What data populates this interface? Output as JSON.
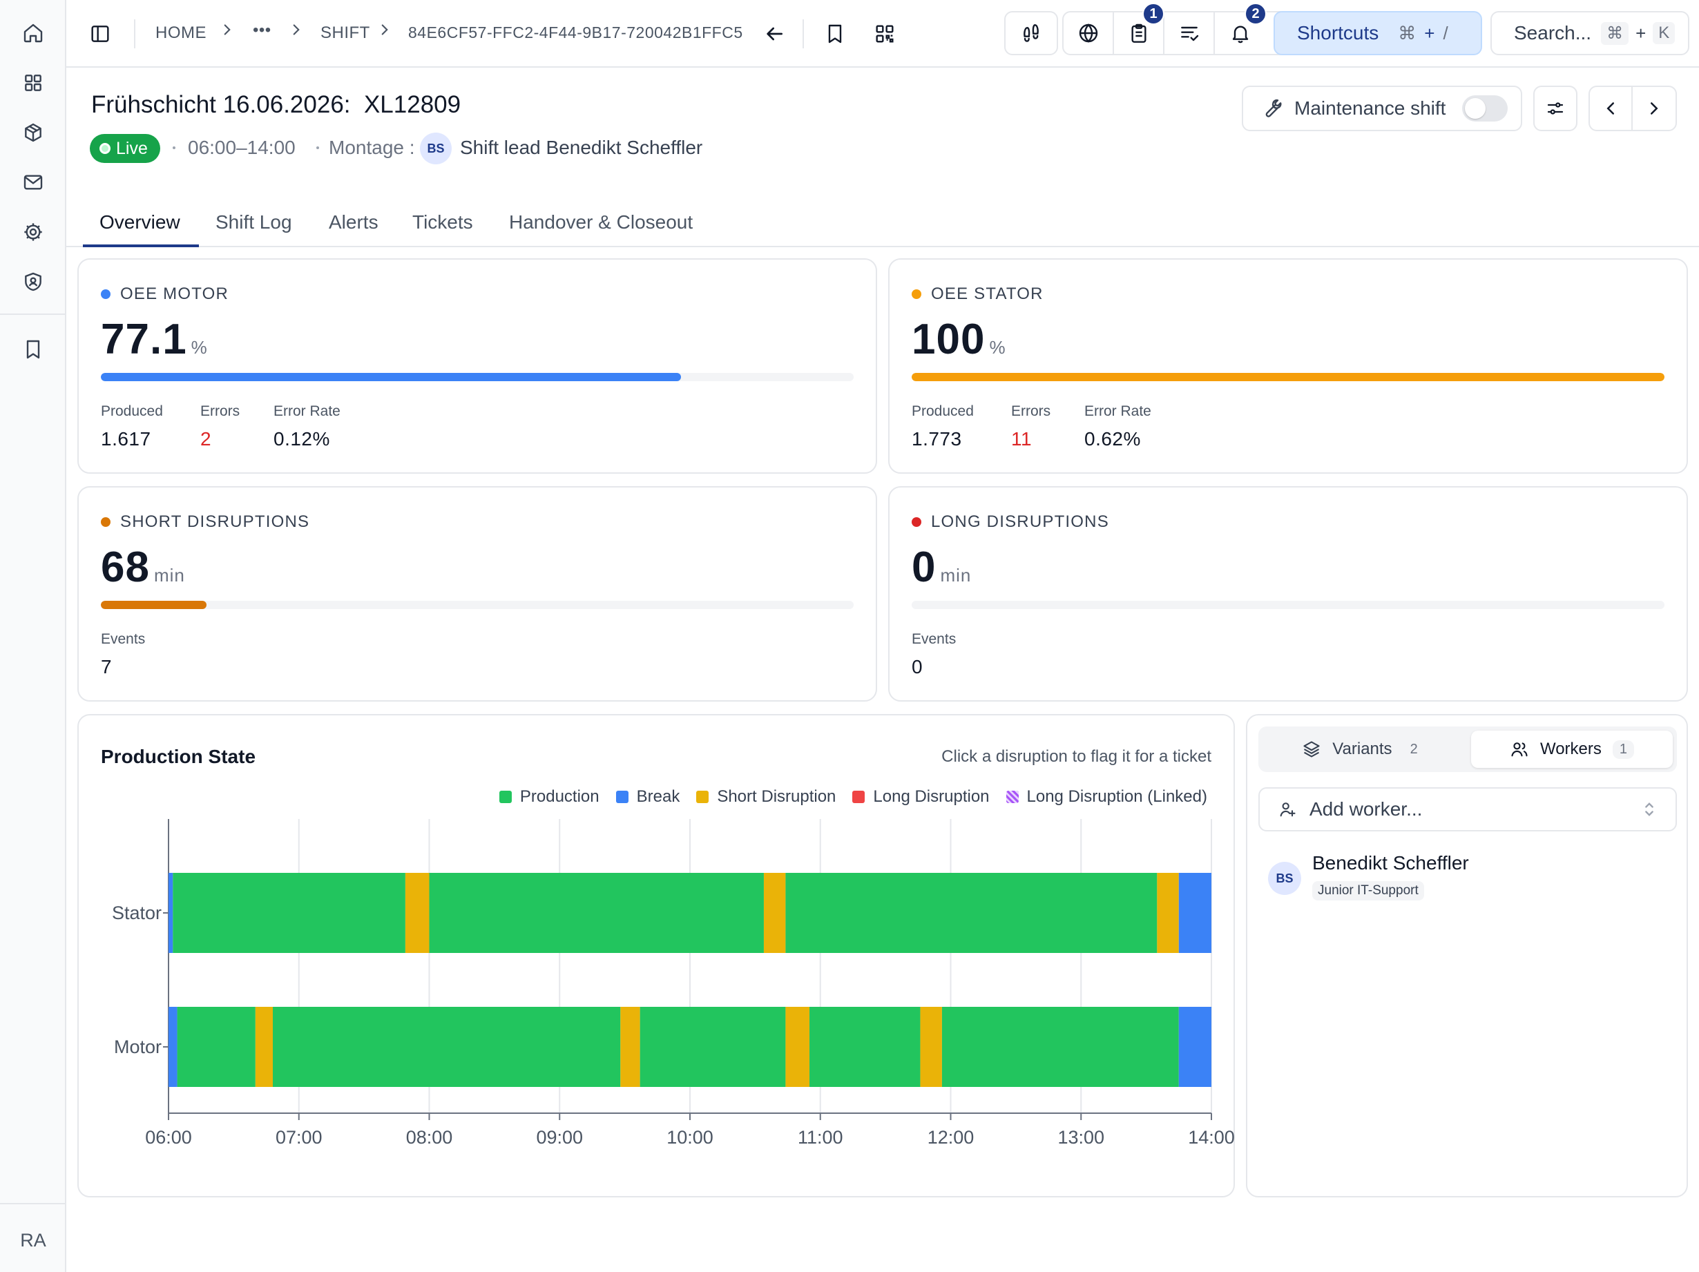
{
  "breadcrumb": {
    "home": "HOME",
    "ellipsis": "•••",
    "section": "SHIFT",
    "id": "84E6CF57-FFC2-4F44-9B17-720042B1FFC5"
  },
  "toolbar": {
    "checklist_badge": "1",
    "notifications_badge": "2",
    "shortcuts_label": "Shortcuts",
    "shortcuts_key1": "⌘",
    "shortcuts_plus": "+",
    "shortcuts_key2": "/",
    "search_label": "Search...",
    "search_key1": "⌘",
    "search_plus": "+",
    "search_key2": "K"
  },
  "header": {
    "title": "Frühschicht 16.06.2026:  XL12809",
    "status": "Live",
    "time_range": "06:00–14:00",
    "line": "Montage :",
    "lead_initials": "BS",
    "lead_text": "Shift lead Benedikt Scheffler",
    "maintenance_label": "Maintenance shift",
    "maintenance_on": false
  },
  "tabs": [
    "Overview",
    "Shift Log",
    "Alerts",
    "Tickets",
    "Handover & Closeout"
  ],
  "kpis": {
    "oee_motor": {
      "label": "OEE MOTOR",
      "value": "77.1",
      "unit": "%",
      "progress": 0.771,
      "color": "#3b82f6",
      "stats": [
        {
          "label": "Produced",
          "value": "1.617"
        },
        {
          "label": "Errors",
          "value": "2"
        },
        {
          "label": "Error Rate",
          "value": "0.12%"
        }
      ]
    },
    "oee_stator": {
      "label": "OEE STATOR",
      "value": "100",
      "unit": "%",
      "progress": 1.0,
      "color": "#f59e0b",
      "stats": [
        {
          "label": "Produced",
          "value": "1.773"
        },
        {
          "label": "Errors",
          "value": "11"
        },
        {
          "label": "Error Rate",
          "value": "0.62%"
        }
      ]
    },
    "short_disruptions": {
      "label": "SHORT DISRUPTIONS",
      "value": "68",
      "unit": "min",
      "progress": 0.14,
      "color": "#d97706",
      "stats": [
        {
          "label": "Events",
          "value": "7"
        }
      ]
    },
    "long_disruptions": {
      "label": "LONG DISRUPTIONS",
      "value": "0",
      "unit": "min",
      "progress": 0,
      "color": "#dc2626",
      "stats": [
        {
          "label": "Events",
          "value": "0"
        }
      ]
    }
  },
  "production": {
    "title": "Production State",
    "hint": "Click a disruption to flag it for a ticket",
    "legend": [
      {
        "label": "Production",
        "color": "#22c55e"
      },
      {
        "label": "Break",
        "color": "#3b82f6"
      },
      {
        "label": "Short Disruption",
        "color": "#eab308"
      },
      {
        "label": "Long Disruption",
        "color": "#ef4444"
      },
      {
        "label": "Long Disruption (Linked)",
        "color": "#a855f7"
      }
    ]
  },
  "chart_data": {
    "type": "bar",
    "subtype": "timeline",
    "title": "Production State",
    "categories": [
      "Stator",
      "Motor"
    ],
    "x_ticks": [
      "06:00",
      "07:00",
      "08:00",
      "09:00",
      "10:00",
      "11:00",
      "12:00",
      "13:00",
      "14:00"
    ],
    "xlim": [
      "06:00",
      "14:00"
    ],
    "grid": true,
    "legend_position": "top-right",
    "states": {
      "production": "#22c55e",
      "break": "#3b82f6",
      "short": "#eab308",
      "long": "#ef4444"
    },
    "series": [
      {
        "category": "Stator",
        "segments": [
          {
            "state": "break",
            "start": "06:00",
            "end": "06:02"
          },
          {
            "state": "production",
            "start": "06:02",
            "end": "07:49"
          },
          {
            "state": "short",
            "start": "07:49",
            "end": "08:00"
          },
          {
            "state": "production",
            "start": "08:00",
            "end": "10:34"
          },
          {
            "state": "short",
            "start": "10:34",
            "end": "10:44"
          },
          {
            "state": "production",
            "start": "10:44",
            "end": "13:35"
          },
          {
            "state": "short",
            "start": "13:35",
            "end": "13:45"
          },
          {
            "state": "break",
            "start": "13:45",
            "end": "14:00"
          }
        ]
      },
      {
        "category": "Motor",
        "segments": [
          {
            "state": "break",
            "start": "06:00",
            "end": "06:04"
          },
          {
            "state": "production",
            "start": "06:04",
            "end": "06:40"
          },
          {
            "state": "short",
            "start": "06:40",
            "end": "06:48"
          },
          {
            "state": "production",
            "start": "06:48",
            "end": "09:28"
          },
          {
            "state": "short",
            "start": "09:28",
            "end": "09:37"
          },
          {
            "state": "production",
            "start": "09:37",
            "end": "10:44"
          },
          {
            "state": "short",
            "start": "10:44",
            "end": "10:55"
          },
          {
            "state": "production",
            "start": "10:55",
            "end": "11:46"
          },
          {
            "state": "short",
            "start": "11:46",
            "end": "11:56"
          },
          {
            "state": "production",
            "start": "11:56",
            "end": "13:45"
          },
          {
            "state": "break",
            "start": "13:45",
            "end": "14:00"
          }
        ]
      }
    ]
  },
  "side_panel": {
    "tabs": [
      {
        "label": "Variants",
        "count": "2"
      },
      {
        "label": "Workers",
        "count": "1"
      }
    ],
    "add_placeholder": "Add worker...",
    "workers": [
      {
        "initials": "BS",
        "name": "Benedikt Scheffler",
        "role": "Junior IT-Support"
      }
    ]
  },
  "user": {
    "initials": "RA"
  }
}
